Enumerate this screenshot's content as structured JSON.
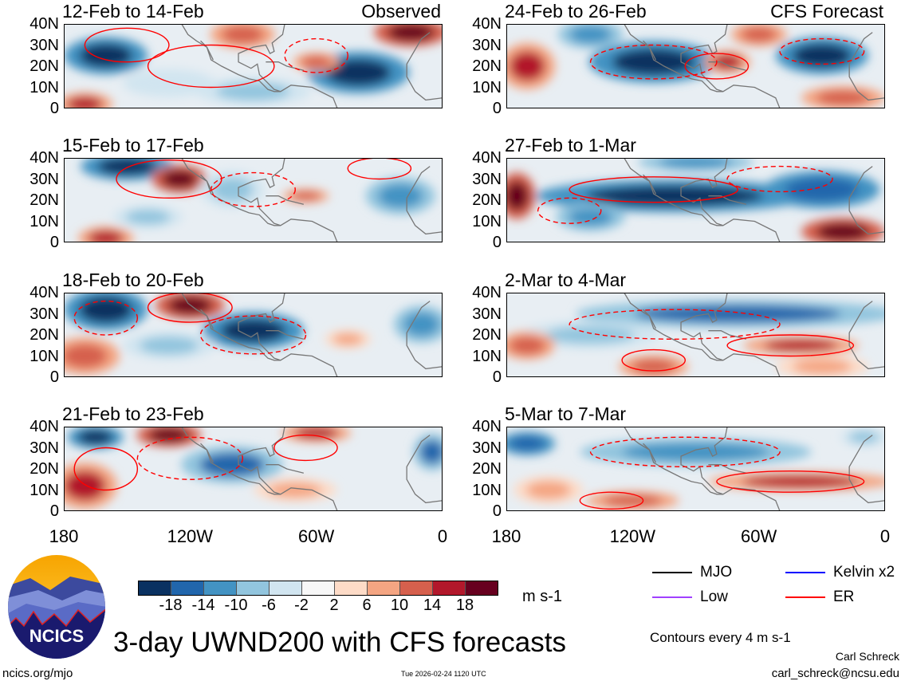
{
  "chart_data": {
    "type": "heatmap",
    "title": "3-day UWND200 with CFS forecasts",
    "units": "m s-1",
    "contour_note": "Contours every 4 m s-1",
    "column_labels": [
      "Observed",
      "CFS Forecast"
    ],
    "lat_ticks": [
      "40N",
      "30N",
      "20N",
      "10N",
      "0"
    ],
    "lon_ticks": [
      "180",
      "120W",
      "60W",
      "0"
    ],
    "colorbar": {
      "ticks": [
        "-18",
        "-14",
        "-10",
        "-6",
        "-2",
        "2",
        "6",
        "10",
        "14",
        "18"
      ],
      "colors": [
        "#0a3161",
        "#2166ac",
        "#4393c3",
        "#92c5de",
        "#d1e5f0",
        "#f7f7f7",
        "#fddbc7",
        "#f4a582",
        "#d6604d",
        "#b2182b",
        "#67001f"
      ]
    },
    "legend": [
      {
        "label": "MJO",
        "color": "#000000"
      },
      {
        "label": "Kelvin x2",
        "color": "#0000ff"
      },
      {
        "label": "Low",
        "color": "#a040ff"
      },
      {
        "label": "ER",
        "color": "#ff0000"
      }
    ],
    "panels": [
      {
        "label": "12-Feb to 14-Feb",
        "col": 0,
        "row": 0,
        "features": [
          [
            160,
            25,
            -20,
            18,
            8
          ],
          [
            170,
            2,
            14,
            12,
            5
          ],
          [
            40,
            17,
            -20,
            22,
            9
          ],
          [
            15,
            36,
            20,
            16,
            6
          ],
          [
            95,
            35,
            12,
            14,
            6
          ],
          [
            90,
            8,
            -10,
            25,
            6
          ],
          [
            60,
            22,
            10,
            10,
            4
          ],
          [
            130,
            12,
            -6,
            20,
            6
          ]
        ],
        "contours": [
          [
            150,
            30,
            20,
            8,
            0
          ],
          [
            60,
            25,
            15,
            8,
            1
          ],
          [
            110,
            20,
            30,
            10,
            0
          ]
        ]
      },
      {
        "label": "24-Feb to 26-Feb",
        "col": 1,
        "row": 0,
        "features": [
          [
            170,
            20,
            16,
            12,
            10
          ],
          [
            110,
            22,
            -20,
            28,
            9
          ],
          [
            75,
            22,
            14,
            10,
            5
          ],
          [
            30,
            25,
            -20,
            20,
            8
          ],
          [
            20,
            5,
            12,
            18,
            5
          ],
          [
            140,
            35,
            -14,
            14,
            6
          ],
          [
            60,
            35,
            10,
            12,
            5
          ]
        ],
        "contours": [
          [
            110,
            22,
            30,
            8,
            1
          ],
          [
            80,
            20,
            15,
            6,
            0
          ],
          [
            30,
            27,
            20,
            6,
            1
          ]
        ]
      },
      {
        "label": "15-Feb to 17-Feb",
        "col": 0,
        "row": 1,
        "features": [
          [
            150,
            36,
            -20,
            20,
            6
          ],
          [
            125,
            30,
            18,
            12,
            6
          ],
          [
            160,
            2,
            14,
            12,
            5
          ],
          [
            100,
            25,
            -10,
            14,
            8
          ],
          [
            65,
            22,
            12,
            10,
            3
          ],
          [
            20,
            22,
            -12,
            15,
            8
          ],
          [
            140,
            12,
            -8,
            15,
            5
          ]
        ],
        "contours": [
          [
            130,
            30,
            25,
            9,
            0
          ],
          [
            90,
            25,
            20,
            8,
            1
          ],
          [
            30,
            35,
            15,
            5,
            0
          ]
        ]
      },
      {
        "label": "27-Feb to 1-Mar",
        "col": 1,
        "row": 1,
        "features": [
          [
            175,
            22,
            18,
            8,
            10
          ],
          [
            100,
            22,
            -20,
            60,
            7
          ],
          [
            30,
            25,
            -18,
            25,
            8
          ],
          [
            20,
            5,
            20,
            18,
            6
          ],
          [
            140,
            12,
            -14,
            15,
            6
          ],
          [
            90,
            38,
            -12,
            25,
            4
          ]
        ],
        "contours": [
          [
            110,
            25,
            40,
            6,
            0
          ],
          [
            50,
            30,
            25,
            6,
            1
          ],
          [
            150,
            15,
            15,
            6,
            1
          ]
        ]
      },
      {
        "label": "18-Feb to 20-Feb",
        "col": 0,
        "row": 2,
        "features": [
          [
            160,
            32,
            -20,
            18,
            9
          ],
          [
            120,
            34,
            18,
            15,
            6
          ],
          [
            90,
            22,
            -20,
            22,
            8
          ],
          [
            170,
            10,
            12,
            15,
            8
          ],
          [
            45,
            18,
            8,
            10,
            4
          ],
          [
            10,
            25,
            -14,
            12,
            8
          ],
          [
            130,
            15,
            -8,
            20,
            6
          ]
        ],
        "contours": [
          [
            120,
            33,
            20,
            7,
            0
          ],
          [
            90,
            20,
            25,
            9,
            1
          ],
          [
            160,
            28,
            15,
            8,
            1
          ]
        ]
      },
      {
        "label": "2-Mar to 4-Mar",
        "col": 1,
        "row": 2,
        "features": [
          [
            70,
            30,
            -16,
            70,
            6
          ],
          [
            140,
            20,
            -10,
            30,
            6
          ],
          [
            40,
            15,
            16,
            25,
            4
          ],
          [
            110,
            5,
            12,
            15,
            5
          ],
          [
            170,
            15,
            10,
            12,
            6
          ],
          [
            30,
            5,
            8,
            20,
            5
          ]
        ],
        "contours": [
          [
            100,
            25,
            50,
            7,
            1
          ],
          [
            45,
            15,
            30,
            5,
            0
          ],
          [
            110,
            8,
            15,
            5,
            0
          ]
        ]
      },
      {
        "label": "21-Feb to 23-Feb",
        "col": 0,
        "row": 3,
        "features": [
          [
            165,
            35,
            -20,
            12,
            5
          ],
          [
            130,
            36,
            18,
            14,
            5
          ],
          [
            170,
            12,
            16,
            14,
            10
          ],
          [
            100,
            22,
            -16,
            22,
            8
          ],
          [
            60,
            37,
            14,
            15,
            4
          ],
          [
            5,
            28,
            -16,
            8,
            8
          ],
          [
            70,
            10,
            8,
            18,
            5
          ]
        ],
        "contours": [
          [
            120,
            25,
            25,
            10,
            1
          ],
          [
            160,
            20,
            15,
            10,
            0
          ],
          [
            65,
            30,
            15,
            6,
            0
          ]
        ]
      },
      {
        "label": "5-Mar to 7-Mar",
        "col": 1,
        "row": 3,
        "features": [
          [
            170,
            32,
            -18,
            12,
            5
          ],
          [
            90,
            28,
            -14,
            50,
            6
          ],
          [
            40,
            14,
            16,
            40,
            4
          ],
          [
            120,
            5,
            10,
            20,
            4
          ],
          [
            160,
            10,
            8,
            15,
            6
          ],
          [
            10,
            35,
            -8,
            10,
            4
          ]
        ],
        "contours": [
          [
            95,
            28,
            45,
            7,
            1
          ],
          [
            45,
            14,
            35,
            5,
            0
          ],
          [
            130,
            5,
            15,
            4,
            0
          ]
        ]
      }
    ]
  },
  "footer": {
    "site": "ncics.org/mjo",
    "timestamp": "Tue 2026-02-24 1120 UTC",
    "author": "Carl Schreck",
    "email": "carl_schreck@ncsu.edu",
    "logo_text": "NCICS"
  }
}
